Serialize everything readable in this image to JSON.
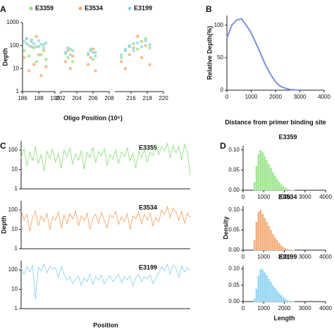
{
  "chart_data": [
    {
      "type": "scatter",
      "panel": "A",
      "xlabel": "Oligo Position (10⁵)",
      "ylabel": "Depth",
      "log_y": true,
      "ylim": [
        1,
        1000
      ],
      "yticks": [
        1,
        10,
        100,
        1000
      ],
      "legend": "top",
      "segments": [
        {
          "xlim": [
            186,
            190
          ],
          "xticks": [
            186,
            188,
            190
          ]
        },
        {
          "xlim": [
            202,
            208
          ],
          "xticks": [
            202,
            204,
            206,
            208
          ]
        },
        {
          "xlim": [
            214,
            220
          ],
          "xticks": [
            216,
            218,
            220
          ]
        }
      ],
      "x": [
        186.2,
        186.5,
        186.8,
        187.1,
        187.4,
        187.7,
        188.0,
        188.3,
        188.6,
        188.9,
        202.6,
        202.9,
        203.2,
        203.5,
        205.4,
        205.7,
        206.0,
        206.3,
        214.8,
        215.3,
        215.8,
        216.3,
        216.8,
        217.3,
        217.8,
        218.3
      ],
      "series": [
        {
          "name": "E3359",
          "color": "#8fe07d",
          "values": [
            60,
            120,
            35,
            150,
            80,
            20,
            90,
            40,
            110,
            25,
            45,
            30,
            70,
            20,
            40,
            60,
            25,
            50,
            30,
            60,
            90,
            120,
            70,
            150,
            200,
            80
          ]
        },
        {
          "name": "E3534",
          "color": "#f5a56a",
          "values": [
            30,
            200,
            8,
            90,
            15,
            250,
            40,
            5,
            60,
            12,
            20,
            60,
            10,
            35,
            15,
            30,
            70,
            8,
            20,
            10,
            40,
            80,
            250,
            30,
            100,
            15
          ]
        },
        {
          "name": "E3199",
          "color": "#8ed2f3",
          "values": [
            150,
            200,
            100,
            180,
            120,
            90,
            160,
            110,
            80,
            130,
            50,
            80,
            40,
            60,
            45,
            70,
            50,
            35,
            40,
            70,
            100,
            60,
            130,
            90,
            160,
            110
          ]
        }
      ]
    },
    {
      "type": "line",
      "panel": "B",
      "xlabel": "Distance from primer binding site",
      "ylabel": "Relative Depth(%)",
      "color": "#7d8fe2",
      "xlim": [
        0,
        4000
      ],
      "xticks": [
        0,
        1000,
        2000,
        3000,
        4000
      ],
      "ylim": [
        0,
        115
      ],
      "yticks": [
        0,
        50,
        100
      ],
      "x": [
        0,
        200,
        400,
        600,
        800,
        1000,
        1200,
        1400,
        1600,
        1800,
        2000,
        2200,
        2400,
        2600,
        2800,
        3000
      ],
      "values": [
        80,
        100,
        108,
        110,
        100,
        88,
        72,
        55,
        38,
        24,
        13,
        6,
        3,
        1,
        0.5,
        0
      ]
    },
    {
      "type": "line",
      "panel": "C",
      "title": "E3359",
      "log_y": true,
      "color": "#8fe07d",
      "ylim": [
        1,
        300
      ],
      "yticks": [
        1,
        10,
        100
      ],
      "values": [
        40,
        120,
        15,
        80,
        30,
        150,
        20,
        60,
        8,
        90,
        35,
        110,
        25,
        70,
        12,
        100,
        45,
        130,
        18,
        65,
        30,
        95,
        10,
        75,
        40,
        140,
        22,
        85,
        50,
        120,
        15,
        60,
        35,
        100,
        20,
        80,
        45,
        130,
        28,
        70,
        12,
        90,
        40,
        110,
        25,
        75,
        55,
        200,
        60,
        150,
        90,
        220,
        40,
        180,
        70,
        160,
        30,
        200,
        80,
        5
      ]
    },
    {
      "type": "line",
      "panel": null,
      "title": "E3534",
      "ylabel": "Depth",
      "log_y": true,
      "color": "#f5a56a",
      "ylim": [
        1,
        300
      ],
      "yticks": [
        1,
        10,
        100
      ],
      "values": [
        100,
        30,
        60,
        8,
        40,
        90,
        15,
        50,
        25,
        70,
        10,
        45,
        30,
        80,
        12,
        55,
        20,
        65,
        35,
        90,
        15,
        50,
        28,
        70,
        10,
        40,
        60,
        20,
        75,
        30,
        12,
        55,
        40,
        85,
        18,
        45,
        25,
        65,
        10,
        50,
        35,
        80,
        20,
        60,
        30,
        70,
        15,
        40,
        25,
        100,
        60,
        150,
        40,
        120,
        80,
        30,
        90,
        20,
        70,
        40
      ]
    },
    {
      "type": "line",
      "panel": null,
      "title": "E3199",
      "xlabel": "Position",
      "log_y": true,
      "color": "#8ed2f3",
      "ylim": [
        1,
        300
      ],
      "yticks": [
        1,
        10,
        100
      ],
      "values": [
        120,
        60,
        150,
        80,
        180,
        3,
        140,
        90,
        200,
        70,
        160,
        110,
        130,
        40,
        150,
        60,
        30,
        45,
        20,
        35,
        50,
        15,
        40,
        25,
        60,
        18,
        45,
        30,
        55,
        20,
        35,
        50,
        25,
        40,
        60,
        22,
        45,
        30,
        50,
        15,
        40,
        60,
        25,
        45,
        35,
        55,
        20,
        40,
        70,
        150,
        90,
        200,
        60,
        180,
        120,
        40,
        160,
        80,
        130,
        100
      ]
    },
    {
      "type": "histogram",
      "panel": "D",
      "title": "E3359",
      "color": "#9ee690",
      "xlim": [
        0,
        4000
      ],
      "xticks": [
        0,
        1000,
        2000,
        3000,
        4000
      ],
      "ylim": [
        0,
        0.11
      ],
      "yticks": [
        {
          "value": 0,
          "label": "0.00"
        },
        {
          "value": 0.05,
          "label": "0.05"
        },
        {
          "value": 0.1,
          "label": "0.10"
        }
      ],
      "bins": [
        0,
        100,
        200,
        300,
        400,
        500,
        600,
        700,
        800,
        900,
        1000,
        1100,
        1200,
        1300,
        1400,
        1500,
        1600,
        1700,
        1800,
        1900,
        2000,
        2100,
        2200,
        2300,
        2400,
        2500,
        2600
      ],
      "values": [
        0,
        0,
        0,
        0,
        0,
        0.02,
        0.06,
        0.09,
        0.1,
        0.095,
        0.085,
        0.075,
        0.065,
        0.055,
        0.045,
        0.036,
        0.028,
        0.021,
        0.015,
        0.01,
        0.007,
        0.004,
        0.002,
        0.001,
        0.0005,
        0
      ]
    },
    {
      "type": "histogram",
      "panel": null,
      "title": "E3534",
      "ylabel": "Density",
      "color": "#f5ad7a",
      "xlim": [
        0,
        4000
      ],
      "xticks": [
        0,
        1000,
        2000,
        3000,
        4000
      ],
      "ylim": [
        0,
        0.11
      ],
      "yticks": [
        {
          "value": 0,
          "label": "0.00"
        },
        {
          "value": 0.05,
          "label": "0.05"
        },
        {
          "value": 0.1,
          "label": "0.10"
        }
      ],
      "bins": [
        0,
        100,
        200,
        300,
        400,
        500,
        600,
        700,
        800,
        900,
        1000,
        1100,
        1200,
        1300,
        1400,
        1500,
        1600,
        1700,
        1800,
        1900,
        2000,
        2100,
        2200,
        2300,
        2400,
        2500,
        2600
      ],
      "values": [
        0,
        0,
        0,
        0,
        0,
        0.025,
        0.07,
        0.095,
        0.1,
        0.09,
        0.08,
        0.07,
        0.06,
        0.05,
        0.04,
        0.032,
        0.025,
        0.018,
        0.012,
        0.008,
        0.005,
        0.003,
        0.002,
        0.001,
        0.0005,
        0
      ]
    },
    {
      "type": "histogram",
      "panel": null,
      "title": "E3199",
      "xlabel": "Length",
      "color": "#93d6f4",
      "xlim": [
        0,
        4000
      ],
      "xticks": [
        0,
        1000,
        2000,
        3000,
        4000
      ],
      "ylim": [
        0,
        0.11
      ],
      "yticks": [
        {
          "value": 0,
          "label": "0.00"
        },
        {
          "value": 0.05,
          "label": "0.05"
        },
        {
          "value": 0.1,
          "label": "0.10"
        }
      ],
      "bins": [
        0,
        100,
        200,
        300,
        400,
        500,
        600,
        700,
        800,
        900,
        1000,
        1100,
        1200,
        1300,
        1400,
        1500,
        1600,
        1700,
        1800,
        1900,
        2000,
        2100,
        2200,
        2300,
        2400,
        2500,
        2600
      ],
      "values": [
        0,
        0,
        0,
        0,
        0,
        0.01,
        0.04,
        0.08,
        0.1,
        0.098,
        0.09,
        0.08,
        0.07,
        0.06,
        0.05,
        0.042,
        0.034,
        0.026,
        0.02,
        0.014,
        0.009,
        0.005,
        0.003,
        0.0015,
        0.0005,
        0
      ]
    }
  ]
}
